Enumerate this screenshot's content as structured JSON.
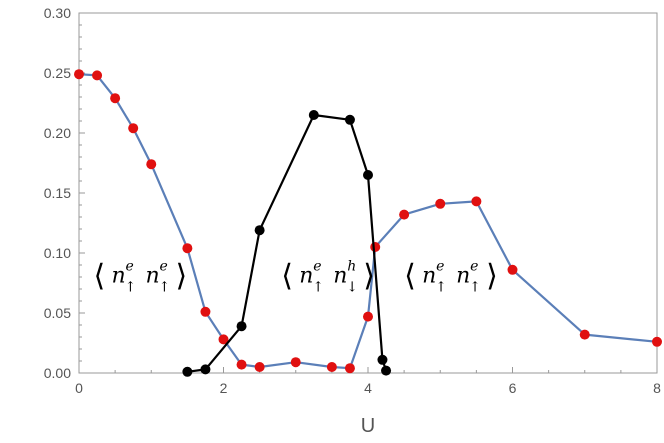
{
  "chart_data": {
    "type": "line",
    "xlabel": "U",
    "ylabel": "",
    "xlim": [
      0,
      8
    ],
    "ylim": [
      0,
      0.3
    ],
    "x_ticks": [
      "0",
      "2",
      "4",
      "6",
      "8"
    ],
    "y_ticks": [
      "0.00",
      "0.05",
      "0.10",
      "0.15",
      "0.20",
      "0.25",
      "0.30"
    ],
    "grid": false,
    "series": [
      {
        "color": "#5b7fb8",
        "marker_color": "#e01010",
        "points": [
          [
            0,
            0.249
          ],
          [
            0.25,
            0.248
          ],
          [
            0.5,
            0.229
          ],
          [
            0.75,
            0.204
          ],
          [
            1.0,
            0.174
          ],
          [
            1.5,
            0.104
          ],
          [
            1.75,
            0.051
          ],
          [
            2.0,
            0.028
          ],
          [
            2.25,
            0.007
          ],
          [
            2.5,
            0.005
          ],
          [
            3.0,
            0.009
          ],
          [
            3.5,
            0.005
          ],
          [
            3.75,
            0.004
          ],
          [
            4.0,
            0.047
          ],
          [
            4.1,
            0.105
          ],
          [
            4.5,
            0.132
          ],
          [
            5.0,
            0.141
          ],
          [
            5.5,
            0.143
          ],
          [
            6.0,
            0.086
          ],
          [
            7.0,
            0.032
          ],
          [
            8.0,
            0.026
          ]
        ]
      },
      {
        "color": "#000000",
        "marker_color": "#000000",
        "points": [
          [
            1.5,
            0.001
          ],
          [
            1.75,
            0.003
          ],
          [
            2.25,
            0.039
          ],
          [
            2.5,
            0.119
          ],
          [
            3.25,
            0.215
          ],
          [
            3.75,
            0.211
          ],
          [
            4.0,
            0.165
          ],
          [
            4.2,
            0.011
          ],
          [
            4.25,
            0.002
          ]
        ]
      }
    ],
    "annotations": [
      {
        "left": "⟨",
        "op1": "n",
        "sup1": "e",
        "sub1": "↑",
        "op2": "n",
        "sup2": "e",
        "sub2": "↑",
        "right": "⟩",
        "at_x": 0.2,
        "at_y": 0.082
      },
      {
        "left": "⟨",
        "op1": "n",
        "sup1": "e",
        "sub1": "↑",
        "op2": "n",
        "sup2": "h",
        "sub2": "↓",
        "right": "⟩",
        "at_x": 2.8,
        "at_y": 0.082
      },
      {
        "left": "⟨",
        "op1": "n",
        "sup1": "e",
        "sub1": "↑",
        "op2": "n",
        "sup2": "e",
        "sub2": "↑",
        "right": "⟩",
        "at_x": 4.5,
        "at_y": 0.082
      }
    ]
  }
}
